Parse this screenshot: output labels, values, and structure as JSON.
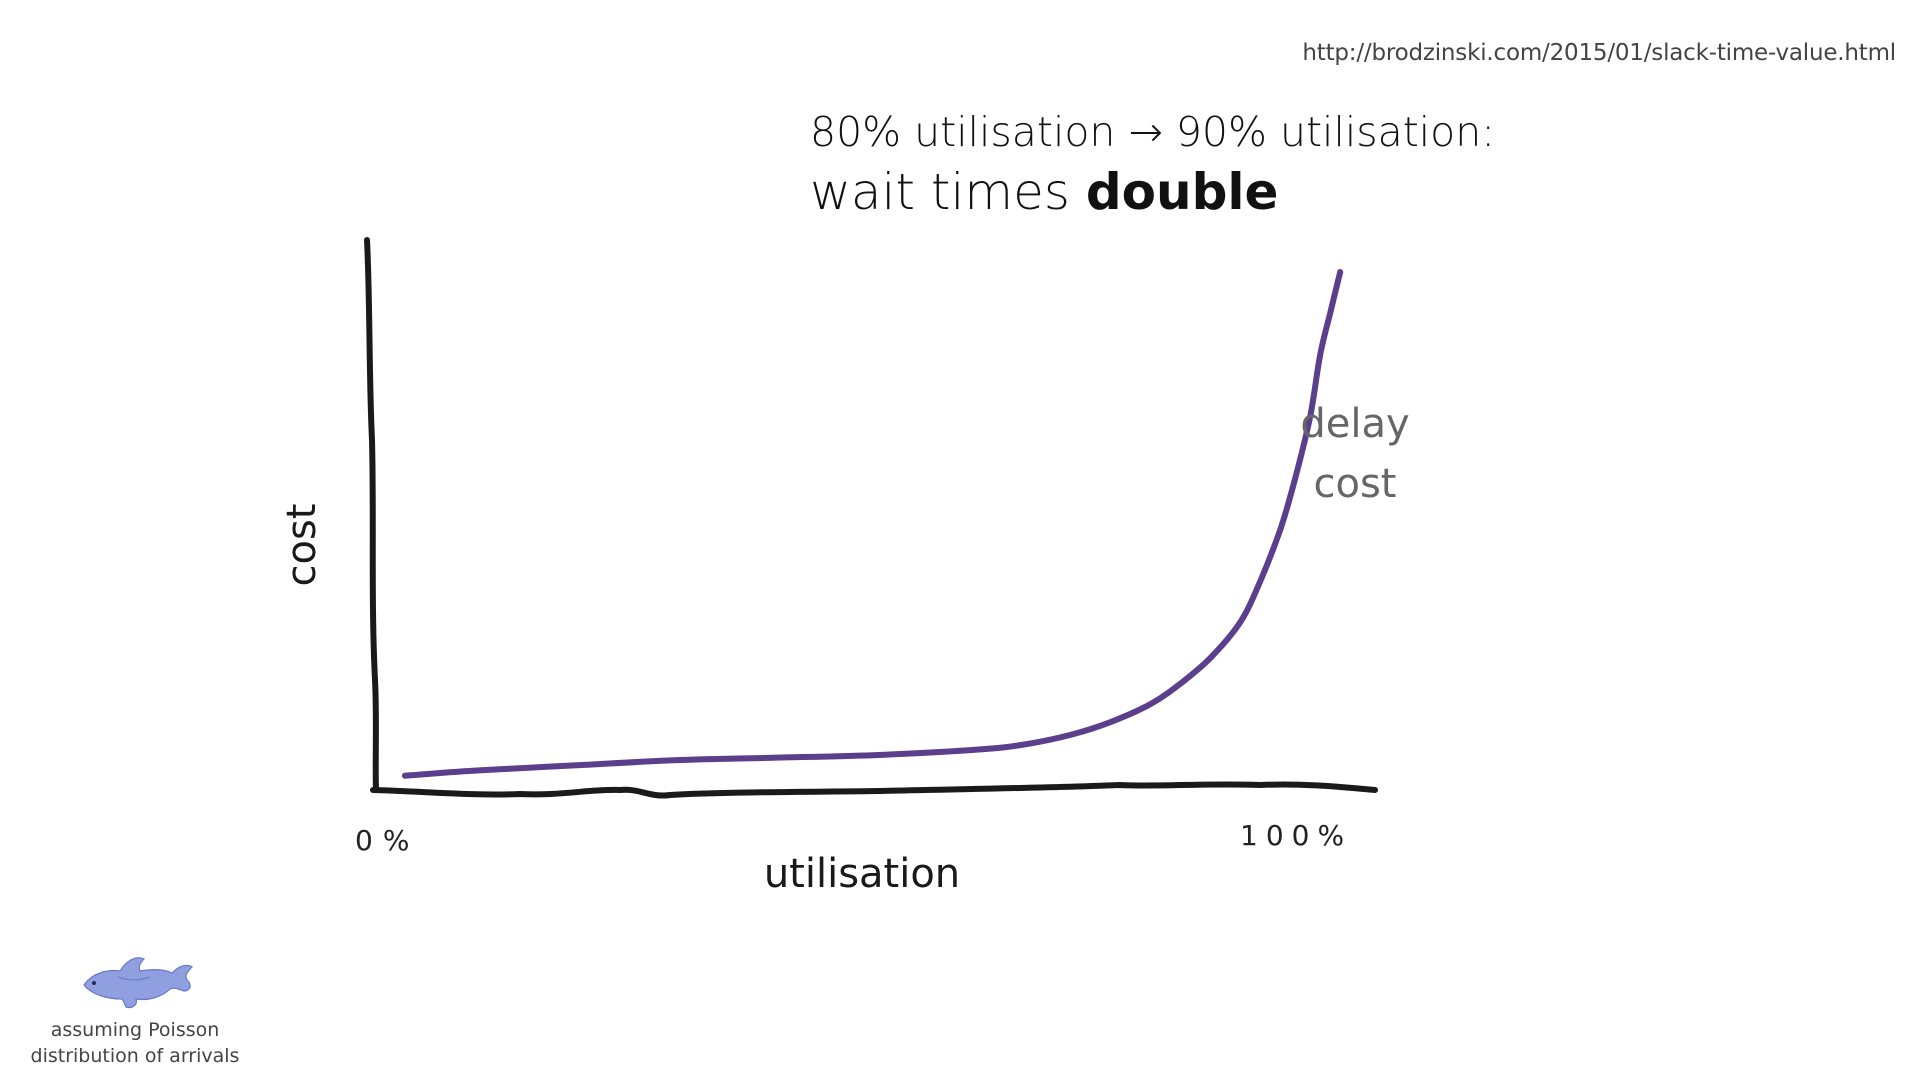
{
  "source_url": "http://brodzinski.com/2015/01/slack-time-value.html",
  "headline": {
    "line1": "80% utilisation → 90% utilisation:",
    "line2_prefix": "wait times ",
    "line2_bold": "double"
  },
  "footnote": {
    "line1": "assuming Poisson",
    "line2": "distribution of arrivals"
  },
  "icons": {
    "fish": "fish-icon"
  },
  "colors": {
    "axis": "#1a1a1a",
    "curve": "#5b3f8c",
    "curve_label": "#666666",
    "fish": "#8f9fe0"
  },
  "chart_data": {
    "type": "line",
    "title": "80% utilisation → 90% utilisation: wait times double",
    "xlabel": "utilisation",
    "ylabel": "cost",
    "x_ticks": [
      "0%",
      "100%"
    ],
    "xlim": [
      0,
      100
    ],
    "ylim": [
      0,
      100
    ],
    "grid": false,
    "series": [
      {
        "name": "delay cost",
        "x": [
          3,
          10,
          20,
          30,
          40,
          50,
          60,
          65,
          70,
          74,
          78,
          81,
          84,
          87,
          89,
          91,
          92.5,
          94,
          95,
          96,
          97
        ],
        "y": [
          2,
          3,
          4,
          5,
          5.5,
          6,
          7,
          8,
          10,
          12.5,
          16,
          20,
          25,
          32,
          40,
          50,
          60,
          72,
          84,
          92,
          100
        ]
      }
    ]
  }
}
